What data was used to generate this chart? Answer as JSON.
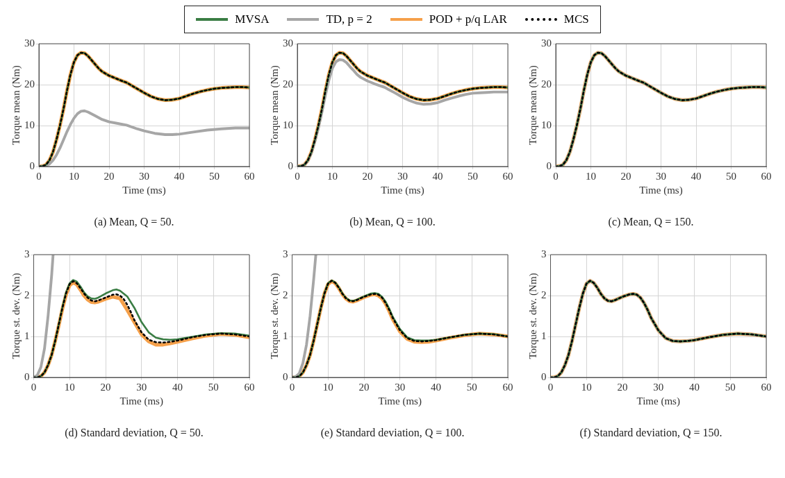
{
  "chart_data": [
    {
      "type": "line",
      "title": "(a) Mean, Q = 50.",
      "xlabel": "Time (ms)",
      "ylabel": "Torque mean (Nm)",
      "xlim": [
        0,
        60
      ],
      "xticks": [
        0,
        10,
        20,
        30,
        40,
        50,
        60
      ],
      "ylim": [
        0,
        30
      ],
      "yticks": [
        0,
        10,
        20,
        30
      ],
      "grid": true,
      "legend": "top",
      "series": [
        {
          "name": "MVSA",
          "color": "#3a7d44",
          "line_style": "solid",
          "x": [
            0,
            1,
            2,
            3,
            4,
            5,
            6,
            7,
            8,
            9,
            10,
            11,
            12,
            13,
            14,
            15,
            16,
            17,
            18,
            20,
            22,
            24,
            25,
            26,
            28,
            30,
            32,
            34,
            36,
            38,
            40,
            42,
            44,
            46,
            48,
            50,
            52,
            54,
            56,
            58,
            60
          ],
          "values": [
            0,
            0.1,
            0.4,
            1.5,
            3.5,
            6.5,
            10,
            14,
            18.5,
            22.5,
            25.5,
            27.2,
            27.8,
            27.7,
            27,
            26,
            25,
            24,
            23.2,
            22.2,
            21.5,
            20.8,
            20.5,
            20,
            19,
            18,
            17.1,
            16.5,
            16.2,
            16.3,
            16.6,
            17.2,
            17.8,
            18.3,
            18.7,
            19,
            19.2,
            19.3,
            19.4,
            19.4,
            19.3
          ]
        },
        {
          "name": "TD, p = 2",
          "color": "#a6a6a6",
          "line_style": "solid",
          "x": [
            0,
            2,
            3,
            4,
            5,
            6,
            7,
            8,
            9,
            10,
            11,
            12,
            13,
            14,
            16,
            18,
            20,
            22,
            25,
            28,
            30,
            33,
            36,
            38,
            40,
            44,
            48,
            52,
            56,
            60
          ],
          "values": [
            0,
            0.2,
            0.6,
            1.5,
            2.8,
            4.5,
            6.5,
            8.5,
            10.3,
            11.8,
            12.9,
            13.5,
            13.6,
            13.3,
            12.4,
            11.5,
            10.9,
            10.6,
            10.1,
            9.2,
            8.7,
            8.1,
            7.8,
            7.8,
            7.9,
            8.4,
            8.9,
            9.2,
            9.4,
            9.4
          ]
        },
        {
          "name": "POD + p/q LAR",
          "color": "#f5a04a",
          "line_style": "solid",
          "x": [
            0,
            1,
            2,
            3,
            4,
            5,
            6,
            7,
            8,
            9,
            10,
            11,
            12,
            13,
            14,
            15,
            16,
            17,
            18,
            20,
            22,
            24,
            25,
            26,
            28,
            30,
            32,
            34,
            36,
            38,
            40,
            42,
            44,
            46,
            48,
            50,
            52,
            54,
            56,
            58,
            60
          ],
          "values": [
            0,
            0.1,
            0.4,
            1.5,
            3.5,
            6.5,
            10,
            14,
            18.5,
            22.5,
            25.5,
            27.2,
            27.8,
            27.7,
            27,
            26,
            25,
            24,
            23.2,
            22.2,
            21.5,
            20.8,
            20.5,
            20,
            19,
            18,
            17.1,
            16.5,
            16.2,
            16.3,
            16.6,
            17.2,
            17.8,
            18.3,
            18.7,
            19,
            19.2,
            19.3,
            19.4,
            19.4,
            19.3
          ]
        },
        {
          "name": "MCS",
          "color": "#000000",
          "line_style": "dotted",
          "x": [
            0,
            1,
            2,
            3,
            4,
            5,
            6,
            7,
            8,
            9,
            10,
            11,
            12,
            13,
            14,
            15,
            16,
            17,
            18,
            20,
            22,
            24,
            25,
            26,
            28,
            30,
            32,
            34,
            36,
            38,
            40,
            42,
            44,
            46,
            48,
            50,
            52,
            54,
            56,
            58,
            60
          ],
          "values": [
            0,
            0.1,
            0.4,
            1.5,
            3.5,
            6.5,
            10,
            14,
            18.5,
            22.5,
            25.5,
            27.2,
            27.8,
            27.7,
            27,
            26,
            25,
            24,
            23.2,
            22.2,
            21.5,
            20.8,
            20.5,
            20,
            19,
            18,
            17.1,
            16.5,
            16.2,
            16.3,
            16.6,
            17.2,
            17.8,
            18.3,
            18.7,
            19,
            19.2,
            19.3,
            19.4,
            19.4,
            19.3
          ]
        }
      ]
    },
    {
      "type": "line",
      "title": "(b) Mean, Q = 100.",
      "xlabel": "Time (ms)",
      "ylabel": "Torque mean (Nm)",
      "xlim": [
        0,
        60
      ],
      "xticks": [
        0,
        10,
        20,
        30,
        40,
        50,
        60
      ],
      "ylim": [
        0,
        30
      ],
      "yticks": [
        0,
        10,
        20,
        30
      ],
      "grid": true,
      "series": [
        {
          "color": "#3a7d44",
          "line_style": "solid",
          "x": [
            0,
            1,
            2,
            3,
            4,
            5,
            6,
            7,
            8,
            9,
            10,
            11,
            12,
            13,
            14,
            15,
            16,
            17,
            18,
            20,
            22,
            24,
            25,
            26,
            28,
            30,
            32,
            34,
            36,
            38,
            40,
            42,
            44,
            46,
            48,
            50,
            52,
            54,
            56,
            58,
            60
          ],
          "values": [
            0,
            0.1,
            0.4,
            1.5,
            3.5,
            6.5,
            10,
            14,
            18.5,
            22.5,
            25.5,
            27.2,
            27.8,
            27.7,
            27,
            26,
            25,
            24,
            23.2,
            22.2,
            21.5,
            20.8,
            20.5,
            20,
            19,
            18,
            17.1,
            16.5,
            16.2,
            16.3,
            16.6,
            17.2,
            17.8,
            18.3,
            18.7,
            19,
            19.2,
            19.3,
            19.4,
            19.4,
            19.3
          ]
        },
        {
          "color": "#a6a6a6",
          "line_style": "solid",
          "x": [
            0,
            1,
            2,
            3,
            4,
            5,
            6,
            7,
            8,
            9,
            10,
            11,
            12,
            13,
            14,
            15,
            16,
            17,
            18,
            20,
            22,
            24,
            25,
            26,
            28,
            30,
            32,
            34,
            36,
            38,
            40,
            42,
            44,
            46,
            48,
            50,
            52,
            54,
            56,
            58,
            60
          ],
          "values": [
            0,
            0.1,
            0.4,
            1.4,
            3.3,
            6.1,
            9.4,
            13.2,
            17.4,
            21.1,
            24,
            25.6,
            26.1,
            26,
            25.4,
            24.4,
            23.5,
            22.5,
            21.8,
            20.9,
            20.2,
            19.6,
            19.3,
            18.8,
            17.9,
            16.9,
            16.1,
            15.5,
            15.2,
            15.3,
            15.6,
            16.2,
            16.7,
            17.2,
            17.6,
            17.9,
            18,
            18.1,
            18.2,
            18.2,
            18.2
          ]
        },
        {
          "color": "#f5a04a",
          "line_style": "solid",
          "x": [
            0,
            1,
            2,
            3,
            4,
            5,
            6,
            7,
            8,
            9,
            10,
            11,
            12,
            13,
            14,
            15,
            16,
            17,
            18,
            20,
            22,
            24,
            25,
            26,
            28,
            30,
            32,
            34,
            36,
            38,
            40,
            42,
            44,
            46,
            48,
            50,
            52,
            54,
            56,
            58,
            60
          ],
          "values": [
            0,
            0.1,
            0.4,
            1.5,
            3.5,
            6.5,
            10,
            14,
            18.5,
            22.5,
            25.5,
            27.2,
            27.8,
            27.7,
            27,
            26,
            25,
            24,
            23.2,
            22.2,
            21.5,
            20.8,
            20.5,
            20,
            19,
            18,
            17.1,
            16.5,
            16.2,
            16.3,
            16.6,
            17.2,
            17.8,
            18.3,
            18.7,
            19,
            19.2,
            19.3,
            19.4,
            19.4,
            19.3
          ]
        },
        {
          "color": "#000000",
          "line_style": "dotted",
          "x": [
            0,
            1,
            2,
            3,
            4,
            5,
            6,
            7,
            8,
            9,
            10,
            11,
            12,
            13,
            14,
            15,
            16,
            17,
            18,
            20,
            22,
            24,
            25,
            26,
            28,
            30,
            32,
            34,
            36,
            38,
            40,
            42,
            44,
            46,
            48,
            50,
            52,
            54,
            56,
            58,
            60
          ],
          "values": [
            0,
            0.1,
            0.4,
            1.5,
            3.5,
            6.5,
            10,
            14,
            18.5,
            22.5,
            25.5,
            27.2,
            27.8,
            27.7,
            27,
            26,
            25,
            24,
            23.2,
            22.2,
            21.5,
            20.8,
            20.5,
            20,
            19,
            18,
            17.1,
            16.5,
            16.2,
            16.3,
            16.6,
            17.2,
            17.8,
            18.3,
            18.7,
            19,
            19.2,
            19.3,
            19.4,
            19.4,
            19.3
          ]
        }
      ]
    },
    {
      "type": "line",
      "title": "(c) Mean, Q = 150.",
      "xlabel": "Time (ms)",
      "ylabel": "Torque mean (Nm)",
      "xlim": [
        0,
        60
      ],
      "xticks": [
        0,
        10,
        20,
        30,
        40,
        50,
        60
      ],
      "ylim": [
        0,
        30
      ],
      "yticks": [
        0,
        10,
        20,
        30
      ],
      "grid": true,
      "series": [
        {
          "color": "#3a7d44",
          "line_style": "solid",
          "x": [
            0,
            1,
            2,
            3,
            4,
            5,
            6,
            7,
            8,
            9,
            10,
            11,
            12,
            13,
            14,
            15,
            16,
            17,
            18,
            20,
            22,
            24,
            25,
            26,
            28,
            30,
            32,
            34,
            36,
            38,
            40,
            42,
            44,
            46,
            48,
            50,
            52,
            54,
            56,
            58,
            60
          ],
          "values": [
            0,
            0.1,
            0.4,
            1.5,
            3.5,
            6.5,
            10,
            14,
            18.5,
            22.5,
            25.5,
            27.2,
            27.8,
            27.7,
            27,
            26,
            25,
            24,
            23.2,
            22.2,
            21.5,
            20.8,
            20.5,
            20,
            19,
            18,
            17.1,
            16.5,
            16.2,
            16.3,
            16.6,
            17.2,
            17.8,
            18.3,
            18.7,
            19,
            19.2,
            19.3,
            19.4,
            19.4,
            19.3
          ]
        },
        {
          "color": "#a6a6a6",
          "line_style": "solid",
          "x": [
            0,
            1,
            2,
            3,
            4,
            5,
            6,
            7,
            8,
            9,
            10,
            11,
            12,
            13,
            14,
            15,
            16,
            17,
            18,
            20,
            22,
            24,
            25,
            26,
            28,
            30,
            32,
            34,
            36,
            38,
            40,
            42,
            44,
            46,
            48,
            50,
            52,
            54,
            56,
            58,
            60
          ],
          "values": [
            0,
            0.1,
            0.4,
            1.5,
            3.5,
            6.5,
            10,
            14,
            18.5,
            22.5,
            25.5,
            27.2,
            27.8,
            27.7,
            27,
            26,
            25,
            24,
            23.2,
            22.2,
            21.5,
            20.8,
            20.5,
            20,
            19,
            18,
            17.1,
            16.5,
            16.2,
            16.3,
            16.6,
            17.2,
            17.8,
            18.3,
            18.7,
            19,
            19.2,
            19.3,
            19.4,
            19.4,
            19.3
          ]
        },
        {
          "color": "#f5a04a",
          "line_style": "solid",
          "x": [
            0,
            1,
            2,
            3,
            4,
            5,
            6,
            7,
            8,
            9,
            10,
            11,
            12,
            13,
            14,
            15,
            16,
            17,
            18,
            20,
            22,
            24,
            25,
            26,
            28,
            30,
            32,
            34,
            36,
            38,
            40,
            42,
            44,
            46,
            48,
            50,
            52,
            54,
            56,
            58,
            60
          ],
          "values": [
            0,
            0.1,
            0.4,
            1.5,
            3.5,
            6.5,
            10,
            14,
            18.5,
            22.5,
            25.5,
            27.2,
            27.8,
            27.7,
            27,
            26,
            25,
            24,
            23.2,
            22.2,
            21.5,
            20.8,
            20.5,
            20,
            19,
            18,
            17.1,
            16.5,
            16.2,
            16.3,
            16.6,
            17.2,
            17.8,
            18.3,
            18.7,
            19,
            19.2,
            19.3,
            19.4,
            19.4,
            19.3
          ]
        },
        {
          "color": "#000000",
          "line_style": "dotted",
          "x": [
            0,
            1,
            2,
            3,
            4,
            5,
            6,
            7,
            8,
            9,
            10,
            11,
            12,
            13,
            14,
            15,
            16,
            17,
            18,
            20,
            22,
            24,
            25,
            26,
            28,
            30,
            32,
            34,
            36,
            38,
            40,
            42,
            44,
            46,
            48,
            50,
            52,
            54,
            56,
            58,
            60
          ],
          "values": [
            0,
            0.1,
            0.4,
            1.5,
            3.5,
            6.5,
            10,
            14,
            18.5,
            22.5,
            25.5,
            27.2,
            27.8,
            27.7,
            27,
            26,
            25,
            24,
            23.2,
            22.2,
            21.5,
            20.8,
            20.5,
            20,
            19,
            18,
            17.1,
            16.5,
            16.2,
            16.3,
            16.6,
            17.2,
            17.8,
            18.3,
            18.7,
            19,
            19.2,
            19.3,
            19.4,
            19.4,
            19.3
          ]
        }
      ]
    },
    {
      "type": "line",
      "title": "(d) Standard deviation, Q = 50.",
      "xlabel": "Time (ms)",
      "ylabel": "Torque st. dev. (Nm)",
      "xlim": [
        0,
        60
      ],
      "xticks": [
        0,
        10,
        20,
        30,
        40,
        50,
        60
      ],
      "ylim": [
        0,
        3
      ],
      "yticks": [
        0,
        1,
        2,
        3
      ],
      "grid": true,
      "series": [
        {
          "color": "#3a7d44",
          "line_style": "solid",
          "x": [
            0,
            1,
            2,
            3,
            4,
            5,
            6,
            7,
            8,
            9,
            10,
            11,
            12,
            13,
            14,
            15,
            16,
            17,
            18,
            20,
            22,
            23,
            24,
            26,
            28,
            30,
            32,
            34,
            36,
            38,
            40,
            44,
            48,
            52,
            56,
            60
          ],
          "values": [
            0,
            0,
            0.03,
            0.12,
            0.3,
            0.55,
            0.9,
            1.3,
            1.72,
            2.08,
            2.3,
            2.38,
            2.34,
            2.22,
            2.08,
            1.98,
            1.93,
            1.92,
            1.95,
            2.05,
            2.13,
            2.15,
            2.12,
            1.98,
            1.7,
            1.35,
            1.1,
            0.97,
            0.93,
            0.92,
            0.93,
            0.99,
            1.05,
            1.08,
            1.07,
            1.02
          ]
        },
        {
          "color": "#a6a6a6",
          "line_style": "solid",
          "x": [
            0,
            1,
            2,
            3,
            4,
            5,
            5.4
          ],
          "values": [
            0,
            0.05,
            0.25,
            0.7,
            1.5,
            2.5,
            3
          ]
        },
        {
          "color": "#f5a04a",
          "line_style": "solid",
          "x": [
            0,
            1,
            2,
            3,
            4,
            5,
            6,
            7,
            8,
            9,
            10,
            11,
            12,
            13,
            14,
            15,
            16,
            17,
            18,
            20,
            22,
            24,
            26,
            28,
            30,
            32,
            34,
            36,
            38,
            40,
            44,
            48,
            52,
            56,
            60
          ],
          "values": [
            0,
            0,
            0.03,
            0.12,
            0.3,
            0.55,
            0.9,
            1.28,
            1.68,
            2.02,
            2.25,
            2.32,
            2.27,
            2.14,
            2.0,
            1.9,
            1.84,
            1.83,
            1.85,
            1.92,
            1.97,
            1.93,
            1.65,
            1.35,
            1.05,
            0.88,
            0.8,
            0.8,
            0.83,
            0.87,
            0.95,
            1.02,
            1.06,
            1.04,
            0.98
          ]
        },
        {
          "color": "#000000",
          "line_style": "dotted",
          "x": [
            0,
            1,
            2,
            3,
            4,
            5,
            6,
            7,
            8,
            9,
            10,
            11,
            12,
            13,
            14,
            15,
            16,
            17,
            18,
            20,
            22,
            23,
            24,
            25,
            26,
            27,
            28,
            30,
            32,
            34,
            36,
            38,
            40,
            44,
            48,
            52,
            56,
            60
          ],
          "values": [
            0,
            0,
            0.03,
            0.12,
            0.3,
            0.55,
            0.9,
            1.3,
            1.7,
            2.05,
            2.28,
            2.35,
            2.3,
            2.18,
            2.05,
            1.95,
            1.88,
            1.86,
            1.88,
            1.95,
            2.02,
            2.03,
            2.0,
            1.92,
            1.78,
            1.6,
            1.4,
            1.1,
            0.92,
            0.86,
            0.85,
            0.87,
            0.9,
            0.98,
            1.04,
            1.07,
            1.05,
            1.0
          ]
        }
      ]
    },
    {
      "type": "line",
      "title": "(e) Standard deviation, Q = 100.",
      "xlabel": "Time (ms)",
      "ylabel": "Torque st. dev. (Nm)",
      "xlim": [
        0,
        60
      ],
      "xticks": [
        0,
        10,
        20,
        30,
        40,
        50,
        60
      ],
      "ylim": [
        0,
        3
      ],
      "yticks": [
        0,
        1,
        2,
        3
      ],
      "grid": true,
      "series": [
        {
          "color": "#3a7d44",
          "line_style": "solid",
          "x": [
            0,
            1,
            2,
            3,
            4,
            5,
            6,
            7,
            8,
            9,
            10,
            11,
            12,
            13,
            14,
            15,
            16,
            17,
            18,
            20,
            22,
            23,
            24,
            25,
            26,
            27,
            28,
            30,
            32,
            34,
            36,
            38,
            40,
            44,
            48,
            52,
            56,
            60
          ],
          "values": [
            0,
            0,
            0.03,
            0.12,
            0.3,
            0.55,
            0.9,
            1.3,
            1.7,
            2.06,
            2.3,
            2.37,
            2.32,
            2.2,
            2.05,
            1.94,
            1.88,
            1.87,
            1.9,
            1.98,
            2.05,
            2.06,
            2.04,
            1.97,
            1.85,
            1.68,
            1.48,
            1.18,
            0.98,
            0.91,
            0.9,
            0.9,
            0.92,
            0.98,
            1.04,
            1.07,
            1.06,
            1.0
          ]
        },
        {
          "color": "#a6a6a6",
          "line_style": "solid",
          "x": [
            0,
            1,
            2,
            3,
            4,
            5,
            6,
            6.6
          ],
          "values": [
            0,
            0.02,
            0.1,
            0.35,
            0.8,
            1.5,
            2.4,
            3
          ]
        },
        {
          "color": "#f5a04a",
          "line_style": "solid",
          "x": [
            0,
            1,
            2,
            3,
            4,
            5,
            6,
            7,
            8,
            9,
            10,
            11,
            12,
            13,
            14,
            15,
            16,
            17,
            18,
            20,
            22,
            23,
            24,
            25,
            26,
            27,
            28,
            30,
            32,
            34,
            36,
            38,
            40,
            44,
            48,
            52,
            56,
            60
          ],
          "values": [
            0,
            0,
            0.03,
            0.12,
            0.3,
            0.55,
            0.9,
            1.3,
            1.7,
            2.05,
            2.28,
            2.35,
            2.3,
            2.18,
            2.03,
            1.92,
            1.86,
            1.85,
            1.88,
            1.96,
            2.02,
            2.03,
            2.0,
            1.93,
            1.8,
            1.62,
            1.42,
            1.12,
            0.94,
            0.87,
            0.86,
            0.87,
            0.9,
            0.97,
            1.03,
            1.07,
            1.05,
            1.0
          ]
        },
        {
          "color": "#000000",
          "line_style": "dotted",
          "x": [
            0,
            1,
            2,
            3,
            4,
            5,
            6,
            7,
            8,
            9,
            10,
            11,
            12,
            13,
            14,
            15,
            16,
            17,
            18,
            20,
            22,
            23,
            24,
            25,
            26,
            27,
            28,
            30,
            32,
            34,
            36,
            38,
            40,
            44,
            48,
            52,
            56,
            60
          ],
          "values": [
            0,
            0,
            0.03,
            0.12,
            0.3,
            0.55,
            0.9,
            1.3,
            1.7,
            2.05,
            2.29,
            2.36,
            2.31,
            2.19,
            2.04,
            1.93,
            1.87,
            1.86,
            1.89,
            1.97,
            2.03,
            2.04,
            2.02,
            1.95,
            1.82,
            1.65,
            1.45,
            1.15,
            0.96,
            0.89,
            0.88,
            0.89,
            0.91,
            0.98,
            1.04,
            1.07,
            1.05,
            1.0
          ]
        }
      ]
    },
    {
      "type": "line",
      "title": "(f) Standard deviation, Q = 150.",
      "xlabel": "Time (ms)",
      "ylabel": "Torque st. dev. (Nm)",
      "xlim": [
        0,
        60
      ],
      "xticks": [
        0,
        10,
        20,
        30,
        40,
        50,
        60
      ],
      "ylim": [
        0,
        3
      ],
      "yticks": [
        0,
        1,
        2,
        3
      ],
      "grid": true,
      "series": [
        {
          "color": "#3a7d44",
          "line_style": "solid",
          "x": [
            0,
            1,
            2,
            3,
            4,
            5,
            6,
            7,
            8,
            9,
            10,
            11,
            12,
            13,
            14,
            15,
            16,
            17,
            18,
            20,
            22,
            23,
            24,
            25,
            26,
            27,
            28,
            30,
            32,
            34,
            36,
            38,
            40,
            44,
            48,
            52,
            56,
            60
          ],
          "values": [
            0,
            0,
            0.03,
            0.12,
            0.3,
            0.55,
            0.9,
            1.3,
            1.7,
            2.05,
            2.29,
            2.36,
            2.31,
            2.19,
            2.04,
            1.93,
            1.87,
            1.86,
            1.89,
            1.97,
            2.03,
            2.04,
            2.02,
            1.95,
            1.82,
            1.65,
            1.45,
            1.15,
            0.96,
            0.89,
            0.88,
            0.89,
            0.91,
            0.98,
            1.04,
            1.07,
            1.05,
            1.0
          ]
        },
        {
          "color": "#a6a6a6",
          "line_style": "solid",
          "x": [
            0,
            1,
            2,
            3,
            4,
            5,
            6,
            7,
            8,
            9,
            10,
            11,
            12,
            13,
            14,
            15,
            16,
            17,
            18,
            20,
            22,
            23,
            24,
            25,
            26,
            27,
            28,
            30,
            32,
            34,
            36,
            38,
            40,
            44,
            48,
            52,
            56,
            60
          ],
          "values": [
            0,
            0,
            0.03,
            0.12,
            0.3,
            0.55,
            0.9,
            1.3,
            1.7,
            2.05,
            2.29,
            2.36,
            2.31,
            2.19,
            2.04,
            1.93,
            1.87,
            1.86,
            1.89,
            1.97,
            2.03,
            2.04,
            2.02,
            1.95,
            1.82,
            1.65,
            1.45,
            1.15,
            0.96,
            0.89,
            0.88,
            0.89,
            0.91,
            0.98,
            1.04,
            1.07,
            1.05,
            1.0
          ]
        },
        {
          "color": "#f5a04a",
          "line_style": "solid",
          "x": [
            0,
            1,
            2,
            3,
            4,
            5,
            6,
            7,
            8,
            9,
            10,
            11,
            12,
            13,
            14,
            15,
            16,
            17,
            18,
            20,
            22,
            23,
            24,
            25,
            26,
            27,
            28,
            30,
            32,
            34,
            36,
            38,
            40,
            44,
            48,
            52,
            56,
            60
          ],
          "values": [
            0,
            0,
            0.03,
            0.12,
            0.3,
            0.55,
            0.9,
            1.3,
            1.7,
            2.05,
            2.29,
            2.36,
            2.31,
            2.19,
            2.04,
            1.93,
            1.87,
            1.86,
            1.89,
            1.97,
            2.03,
            2.04,
            2.02,
            1.95,
            1.82,
            1.65,
            1.45,
            1.15,
            0.96,
            0.89,
            0.88,
            0.89,
            0.91,
            0.98,
            1.04,
            1.07,
            1.05,
            1.0
          ]
        },
        {
          "color": "#000000",
          "line_style": "dotted",
          "x": [
            0,
            1,
            2,
            3,
            4,
            5,
            6,
            7,
            8,
            9,
            10,
            11,
            12,
            13,
            14,
            15,
            16,
            17,
            18,
            20,
            22,
            23,
            24,
            25,
            26,
            27,
            28,
            30,
            32,
            34,
            36,
            38,
            40,
            44,
            48,
            52,
            56,
            60
          ],
          "values": [
            0,
            0,
            0.03,
            0.12,
            0.3,
            0.55,
            0.9,
            1.3,
            1.7,
            2.05,
            2.29,
            2.36,
            2.31,
            2.19,
            2.04,
            1.93,
            1.87,
            1.86,
            1.89,
            1.97,
            2.03,
            2.04,
            2.02,
            1.95,
            1.82,
            1.65,
            1.45,
            1.15,
            0.96,
            0.89,
            0.88,
            0.89,
            0.91,
            0.98,
            1.04,
            1.07,
            1.05,
            1.0
          ]
        }
      ]
    }
  ]
}
